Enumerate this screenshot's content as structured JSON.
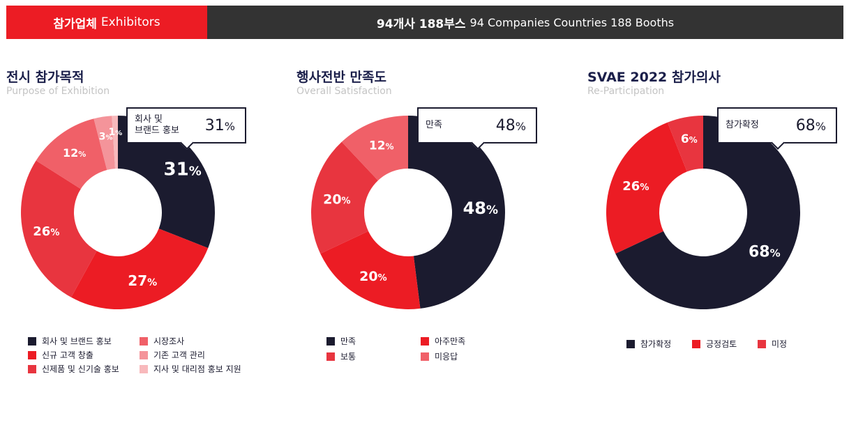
{
  "header": {
    "left_kr": "참가업체",
    "left_en": "Exhibitors",
    "right_kr": "94개사 188부스",
    "right_en": "94 Companies Countries 188 Booths"
  },
  "colors": {
    "header_red": "#ec1c24",
    "header_dark": "#333333",
    "navy": "#1b1b2f",
    "red": "#ec1c24",
    "mid_red": "#e8353f",
    "light_red": "#f06068",
    "pink": "#f4949a",
    "light_pink": "#f8b9bc"
  },
  "chart_data": [
    {
      "type": "pie",
      "title": "전시 참가목적",
      "subtitle": "Purpose of Exhibition",
      "categories": [
        "회사 및 브랜드 홍보",
        "신규 고객 창출",
        "신제품 및 신기술 홍보",
        "시장조사",
        "기존 고객 관리",
        "지사 및 대리점 홍보 지원"
      ],
      "values": [
        31,
        27,
        26,
        12,
        3,
        1
      ],
      "slice_labels": [
        "31",
        "27",
        "26",
        "12",
        "3",
        "1"
      ],
      "colors": [
        "#1b1b2f",
        "#ec1c24",
        "#e8353f",
        "#f06068",
        "#f4949a",
        "#f8b9bc"
      ],
      "callout": {
        "label": "회사 및\n브랜드 홍보",
        "value": "31"
      },
      "legend_placement": "bottom"
    },
    {
      "type": "pie",
      "title": "행사전반 만족도",
      "subtitle": "Overall Satisfaction",
      "categories": [
        "만족",
        "아주만족",
        "보통",
        "미응답"
      ],
      "values": [
        48,
        20,
        20,
        12
      ],
      "slice_labels": [
        "48",
        "20",
        "20",
        "12"
      ],
      "colors": [
        "#1b1b2f",
        "#ec1c24",
        "#e8353f",
        "#f06068"
      ],
      "callout": {
        "label": "만족",
        "value": "48"
      },
      "legend_placement": "bottom"
    },
    {
      "type": "pie",
      "title": "SVAE 2022 참가의사",
      "subtitle": "Re-Participation",
      "categories": [
        "참가확정",
        "긍정검토",
        "미정"
      ],
      "values": [
        68,
        26,
        6
      ],
      "slice_labels": [
        "68",
        "26",
        "6"
      ],
      "colors": [
        "#1b1b2f",
        "#ec1c24",
        "#e8353f"
      ],
      "callout": {
        "label": "참가확정",
        "value": "68"
      },
      "legend_placement": "bottom"
    }
  ]
}
